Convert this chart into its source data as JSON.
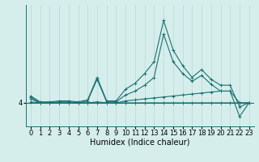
{
  "bg_color": "#d5eeec",
  "line_color": "#1a7070",
  "grid_color": "#c0dada",
  "xlabel": "Humidex (Indice chaleur)",
  "xlabel_fontsize": 7,
  "tick_fontsize": 6,
  "xlim": [
    -0.5,
    23.5
  ],
  "ylim": [
    2.8,
    9.0
  ],
  "yticks": [
    4
  ],
  "xticks": [
    0,
    1,
    2,
    3,
    4,
    5,
    6,
    7,
    8,
    9,
    10,
    11,
    12,
    13,
    14,
    15,
    16,
    17,
    18,
    19,
    20,
    21,
    22,
    23
  ],
  "series": [
    {
      "x": [
        0,
        1,
        2,
        3,
        4,
        5,
        6,
        7,
        8,
        9,
        10,
        11,
        12,
        13,
        14,
        15,
        16,
        17,
        18,
        19,
        20,
        21,
        22,
        23
      ],
      "y": [
        4.05,
        4.0,
        4.0,
        4.0,
        4.0,
        4.0,
        4.0,
        4.0,
        4.0,
        4.0,
        4.0,
        4.0,
        4.0,
        4.0,
        4.0,
        4.0,
        4.0,
        4.0,
        4.0,
        4.0,
        4.0,
        4.0,
        4.0,
        4.0
      ]
    },
    {
      "x": [
        0,
        1,
        2,
        3,
        4,
        5,
        6,
        7,
        8,
        9,
        10,
        11,
        12,
        13,
        14,
        15,
        16,
        17,
        18,
        19,
        20,
        21,
        22,
        23
      ],
      "y": [
        4.2,
        4.0,
        4.0,
        4.0,
        4.0,
        4.0,
        4.0,
        4.05,
        4.0,
        4.0,
        4.1,
        4.15,
        4.2,
        4.25,
        4.3,
        4.35,
        4.4,
        4.45,
        4.5,
        4.55,
        4.6,
        4.6,
        4.0,
        4.0
      ]
    },
    {
      "x": [
        0,
        1,
        2,
        3,
        4,
        5,
        6,
        7,
        8,
        9,
        10,
        11,
        12,
        13,
        14,
        15,
        16,
        17,
        18,
        19,
        20,
        21,
        22,
        23
      ],
      "y": [
        4.3,
        4.0,
        4.0,
        4.05,
        4.05,
        4.0,
        4.1,
        5.2,
        4.05,
        4.05,
        4.4,
        4.6,
        4.9,
        5.3,
        7.5,
        6.1,
        5.5,
        5.1,
        5.4,
        4.95,
        4.6,
        4.6,
        3.3,
        4.0
      ]
    },
    {
      "x": [
        0,
        1,
        2,
        3,
        4,
        5,
        6,
        7,
        8,
        9,
        10,
        11,
        12,
        13,
        14,
        15,
        16,
        17,
        18,
        19,
        20,
        21,
        22,
        23
      ],
      "y": [
        4.35,
        4.05,
        4.05,
        4.1,
        4.1,
        4.05,
        4.15,
        5.3,
        4.1,
        4.1,
        4.7,
        5.0,
        5.5,
        6.1,
        8.2,
        6.7,
        5.9,
        5.3,
        5.7,
        5.2,
        4.9,
        4.9,
        3.8,
        4.0
      ]
    }
  ]
}
